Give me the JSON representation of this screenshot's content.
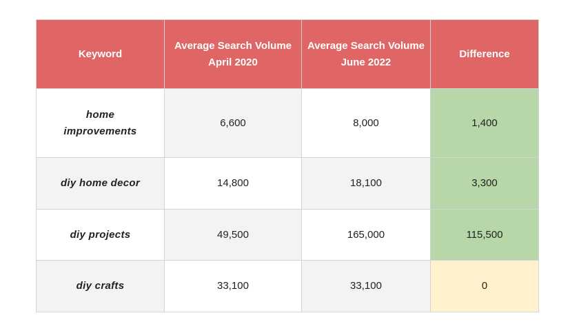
{
  "table": {
    "headers": {
      "keyword": "Keyword",
      "april_line1": "Average Search Volume",
      "april_line2": "April 2020",
      "june_line1": "Average Search Volume",
      "june_line2": "June 2022",
      "difference": "Difference"
    },
    "rows": [
      {
        "keyword": "home improvements",
        "april_2020": "6,600",
        "june_2022": "8,000",
        "difference": "1,400"
      },
      {
        "keyword": "diy home decor",
        "april_2020": "14,800",
        "june_2022": "18,100",
        "difference": "3,300"
      },
      {
        "keyword": "diy projects",
        "april_2020": "49,500",
        "june_2022": "165,000",
        "difference": "115,500"
      },
      {
        "keyword": "diy crafts",
        "april_2020": "33,100",
        "june_2022": "33,100",
        "difference": "0"
      }
    ]
  },
  "colors": {
    "header_bg": "#e06666",
    "positive_difference_bg": "#b7d7a8",
    "zero_difference_bg": "#fff2cc",
    "stripe_bg": "#f3f3f3"
  }
}
